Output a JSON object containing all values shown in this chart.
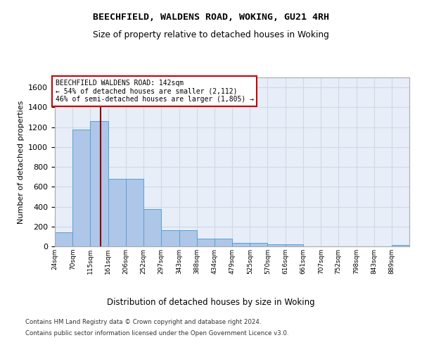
{
  "title1": "BEECHFIELD, WALDENS ROAD, WOKING, GU21 4RH",
  "title2": "Size of property relative to detached houses in Woking",
  "xlabel": "Distribution of detached houses by size in Woking",
  "ylabel": "Number of detached properties",
  "footer1": "Contains HM Land Registry data © Crown copyright and database right 2024.",
  "footer2": "Contains public sector information licensed under the Open Government Licence v3.0.",
  "annotation_title": "BEECHFIELD WALDENS ROAD: 142sqm",
  "annotation_line1": "← 54% of detached houses are smaller (2,112)",
  "annotation_line2": "46% of semi-detached houses are larger (1,805) →",
  "property_size": 142,
  "bin_edges": [
    24,
    70,
    115,
    161,
    206,
    252,
    297,
    343,
    388,
    434,
    479,
    525,
    570,
    616,
    661,
    707,
    752,
    798,
    843,
    889,
    934
  ],
  "bar_heights": [
    145,
    1175,
    1260,
    680,
    680,
    375,
    165,
    165,
    80,
    80,
    35,
    35,
    20,
    20,
    0,
    0,
    0,
    0,
    0,
    15
  ],
  "bar_color": "#aec6e8",
  "bar_edge_color": "#5a9fd4",
  "vline_color": "#8b0000",
  "grid_color": "#d0d8e8",
  "bg_color": "#e8eef8",
  "annotation_box_color": "#ffffff",
  "annotation_box_edge_color": "#cc0000",
  "ylim": [
    0,
    1700
  ],
  "yticks": [
    0,
    200,
    400,
    600,
    800,
    1000,
    1200,
    1400,
    1600
  ]
}
